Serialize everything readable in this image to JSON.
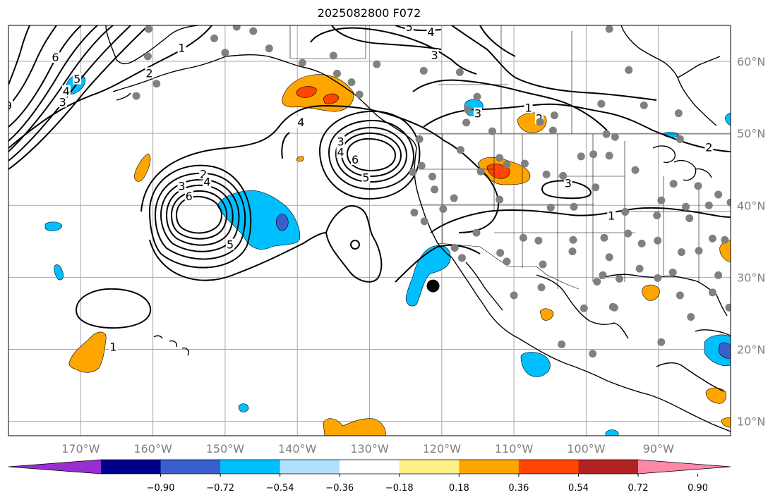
{
  "title": "2025082800 F072",
  "map": {
    "lon_range": [
      -180,
      -80
    ],
    "lat_range": [
      8,
      65
    ],
    "lon_ticks": [
      {
        "lon": -170,
        "label": "170°W"
      },
      {
        "lon": -160,
        "label": "160°W"
      },
      {
        "lon": -150,
        "label": "150°W"
      },
      {
        "lon": -140,
        "label": "140°W"
      },
      {
        "lon": -130,
        "label": "130°W"
      },
      {
        "lon": -120,
        "label": "120°W"
      },
      {
        "lon": -110,
        "label": "110°W"
      },
      {
        "lon": -100,
        "label": "100°W"
      },
      {
        "lon": -90,
        "label": "90°W"
      }
    ],
    "lat_ticks": [
      {
        "lat": 10,
        "label": "10°N"
      },
      {
        "lat": 20,
        "label": "20°N"
      },
      {
        "lat": 30,
        "label": "30°N"
      },
      {
        "lat": 40,
        "label": "40°N"
      },
      {
        "lat": 50,
        "label": "50°N"
      },
      {
        "lat": 60,
        "label": "60°N"
      }
    ],
    "contour_labels": [
      {
        "text": "6",
        "lon": -173.5,
        "lat": 60.5
      },
      {
        "text": "5",
        "lon": -170.5,
        "lat": 57.5
      },
      {
        "text": "4",
        "lon": -172,
        "lat": 55.8
      },
      {
        "text": "3",
        "lon": -172.5,
        "lat": 54.3
      },
      {
        "text": "2",
        "lon": -160.5,
        "lat": 58.3
      },
      {
        "text": "1",
        "lon": -156,
        "lat": 61.8
      },
      {
        "text": "9",
        "lon": -180,
        "lat": 53.8
      },
      {
        "text": "2",
        "lon": -153,
        "lat": 44.3
      },
      {
        "text": "4",
        "lon": -152.5,
        "lat": 43.2
      },
      {
        "text": "3",
        "lon": -156,
        "lat": 42.6
      },
      {
        "text": "6",
        "lon": -155,
        "lat": 41.2
      },
      {
        "text": "5",
        "lon": -149.3,
        "lat": 34.5
      },
      {
        "text": "3",
        "lon": -134,
        "lat": 48.8
      },
      {
        "text": "4",
        "lon": -134,
        "lat": 47.3
      },
      {
        "text": "6",
        "lon": -132,
        "lat": 46.3
      },
      {
        "text": "5",
        "lon": -130.5,
        "lat": 43.8
      },
      {
        "text": "4",
        "lon": -139.5,
        "lat": 51.5
      },
      {
        "text": "5",
        "lon": -124.5,
        "lat": 64.7
      },
      {
        "text": "4",
        "lon": -121.5,
        "lat": 64.0
      },
      {
        "text": "3",
        "lon": -121,
        "lat": 60.8
      },
      {
        "text": "1",
        "lon": -108,
        "lat": 53.5
      },
      {
        "text": "2",
        "lon": -106.5,
        "lat": 52.0
      },
      {
        "text": "2",
        "lon": -83,
        "lat": 48.0
      },
      {
        "text": "3",
        "lon": -102.5,
        "lat": 43.0
      },
      {
        "text": "1",
        "lon": -96.5,
        "lat": 38.5
      },
      {
        "text": "1",
        "lon": -165.5,
        "lat": 20.3
      },
      {
        "text": "3",
        "lon": -115,
        "lat": 52.7
      }
    ],
    "highlight_point": {
      "lon": -121.2,
      "lat": 28.8
    },
    "station_points": [
      [
        -160.6,
        64.5
      ],
      [
        -148.4,
        64.8
      ],
      [
        -146.1,
        64.2
      ],
      [
        -151.5,
        63.2
      ],
      [
        -160.7,
        60.7
      ],
      [
        -159.5,
        56.9
      ],
      [
        -162.3,
        55.2
      ],
      [
        -150.0,
        61.2
      ],
      [
        -143.9,
        61.8
      ],
      [
        -135.0,
        60.8
      ],
      [
        -139.3,
        59.8
      ],
      [
        -134.5,
        58.3
      ],
      [
        -131.4,
        55.4
      ],
      [
        -132.5,
        57.1
      ],
      [
        -129.0,
        59.6
      ],
      [
        -122.5,
        58.7
      ],
      [
        -117.5,
        58.5
      ],
      [
        -116.6,
        51.5
      ],
      [
        -115.1,
        55.1
      ],
      [
        -116.4,
        53.3
      ],
      [
        -113.0,
        50.3
      ],
      [
        -106.4,
        51.6
      ],
      [
        -104.4,
        52.5
      ],
      [
        -97.2,
        49.9
      ],
      [
        -87.2,
        52.8
      ],
      [
        -94.1,
        58.8
      ],
      [
        -96.8,
        64.5
      ],
      [
        -87.0,
        49.2
      ],
      [
        -97.9,
        54.1
      ],
      [
        -92.0,
        53.9
      ],
      [
        -123.1,
        49.2
      ],
      [
        -124.0,
        44.6
      ],
      [
        -122.8,
        45.5
      ],
      [
        -122.4,
        37.8
      ],
      [
        -121.0,
        42.2
      ],
      [
        -117.4,
        47.7
      ],
      [
        -112.0,
        46.6
      ],
      [
        -104.6,
        50.4
      ],
      [
        -99.0,
        47.1
      ],
      [
        -96.8,
        46.9
      ],
      [
        -96.0,
        49.5
      ],
      [
        -93.2,
        44.9
      ],
      [
        -87.9,
        43.0
      ],
      [
        -84.5,
        42.7
      ],
      [
        -81.7,
        41.5
      ],
      [
        -83.0,
        40.0
      ],
      [
        -86.2,
        39.8
      ],
      [
        -90.2,
        38.6
      ],
      [
        -94.6,
        39.1
      ],
      [
        -97.5,
        35.5
      ],
      [
        -96.8,
        32.8
      ],
      [
        -95.4,
        29.8
      ],
      [
        -98.5,
        29.4
      ],
      [
        -101.8,
        35.2
      ],
      [
        -106.6,
        35.1
      ],
      [
        -111.9,
        33.4
      ],
      [
        -115.2,
        36.2
      ],
      [
        -117.2,
        32.7
      ],
      [
        -118.2,
        34.1
      ],
      [
        -112.0,
        40.8
      ],
      [
        -104.9,
        39.7
      ],
      [
        -105.5,
        44.3
      ],
      [
        -108.5,
        45.8
      ],
      [
        -111.0,
        45.7
      ],
      [
        -111.0,
        32.2
      ],
      [
        -106.0,
        31.8
      ],
      [
        -101.9,
        33.6
      ],
      [
        -97.7,
        30.3
      ],
      [
        -90.1,
        29.9
      ],
      [
        -88.0,
        30.7
      ],
      [
        -86.8,
        33.5
      ],
      [
        -84.4,
        33.7
      ],
      [
        -81.7,
        30.3
      ],
      [
        -80.2,
        25.8
      ],
      [
        -82.5,
        27.9
      ],
      [
        -85.7,
        38.2
      ],
      [
        -89.6,
        40.7
      ],
      [
        -80.0,
        40.4
      ],
      [
        -82.5,
        35.4
      ],
      [
        -80.8,
        35.2
      ],
      [
        -94.2,
        36.1
      ],
      [
        -92.3,
        34.7
      ],
      [
        -90.1,
        35.1
      ],
      [
        -100.7,
        46.8
      ],
      [
        -103.2,
        44.1
      ],
      [
        -98.7,
        42.5
      ],
      [
        -101.7,
        39.8
      ],
      [
        -108.7,
        35.5
      ],
      [
        -114.6,
        44.7
      ],
      [
        -119.8,
        39.5
      ],
      [
        -118.3,
        41.0
      ],
      [
        -121.3,
        44.0
      ],
      [
        -123.8,
        39.0
      ],
      [
        -106.2,
        28.6
      ],
      [
        -96.1,
        25.8
      ],
      [
        -100.3,
        25.7
      ],
      [
        -103.4,
        20.7
      ],
      [
        -99.1,
        19.4
      ],
      [
        -110.0,
        27.5
      ],
      [
        -85.5,
        24.5
      ],
      [
        -89.6,
        21.0
      ],
      [
        -87.0,
        27.5
      ],
      [
        -92.6,
        31.2
      ],
      [
        -96.3,
        25.9
      ]
    ]
  },
  "colorbar": {
    "colors": [
      "#9a2fd1",
      "#00008b",
      "#3a5fcd",
      "#00bfff",
      "#b0e2ff",
      "#ffffff",
      "#fff08a",
      "#ffa500",
      "#ff4500",
      "#b22222",
      "#ff88aa"
    ],
    "tick_labels": [
      "−0.90",
      "−0.72",
      "−0.54",
      "−0.36",
      "−0.18",
      "0.18",
      "0.36",
      "0.54",
      "0.72",
      "0.90"
    ]
  }
}
